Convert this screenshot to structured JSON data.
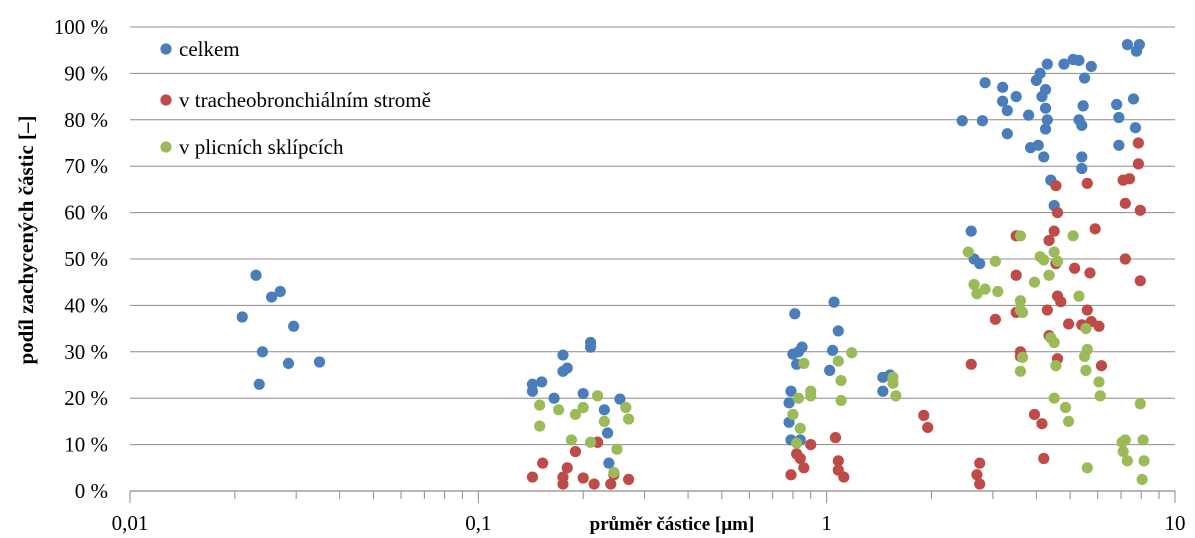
{
  "chart_data": {
    "type": "scatter",
    "xlabel": "průměr částice [µm]",
    "ylabel": "podíl zachycených částic [–]",
    "x_scale": "log",
    "xlim": [
      0.01,
      10
    ],
    "ylim": [
      0,
      100
    ],
    "x_ticks": [
      {
        "value": 0.01,
        "label": "0,01"
      },
      {
        "value": 0.1,
        "label": "0,1"
      },
      {
        "value": 1,
        "label": "1"
      },
      {
        "value": 10,
        "label": "10"
      }
    ],
    "y_ticks": [
      {
        "value": 0,
        "label": "0 %"
      },
      {
        "value": 10,
        "label": "10 %"
      },
      {
        "value": 20,
        "label": "20 %"
      },
      {
        "value": 30,
        "label": "30 %"
      },
      {
        "value": 40,
        "label": "40 %"
      },
      {
        "value": 50,
        "label": "50 %"
      },
      {
        "value": 60,
        "label": "60 %"
      },
      {
        "value": 70,
        "label": "70 %"
      },
      {
        "value": 80,
        "label": "80 %"
      },
      {
        "value": 90,
        "label": "90 %"
      },
      {
        "value": 100,
        "label": "100 %"
      }
    ],
    "grid": "horizontal",
    "legend_position": "top-left",
    "series": [
      {
        "name": "celkem",
        "color": "#4a7ebb",
        "points": [
          [
            0.021,
            37.5
          ],
          [
            0.023,
            46.5
          ],
          [
            0.0235,
            23
          ],
          [
            0.024,
            30
          ],
          [
            0.0255,
            41.8
          ],
          [
            0.027,
            43
          ],
          [
            0.0285,
            27.5
          ],
          [
            0.0295,
            35.5
          ],
          [
            0.035,
            27.8
          ],
          [
            0.143,
            23
          ],
          [
            0.143,
            21.5
          ],
          [
            0.152,
            23.5
          ],
          [
            0.165,
            20
          ],
          [
            0.175,
            29.3
          ],
          [
            0.175,
            25.8
          ],
          [
            0.18,
            26.5
          ],
          [
            0.2,
            21
          ],
          [
            0.21,
            32
          ],
          [
            0.21,
            31
          ],
          [
            0.22,
            10.5
          ],
          [
            0.23,
            17.5
          ],
          [
            0.235,
            12.5
          ],
          [
            0.237,
            6
          ],
          [
            0.255,
            19.8
          ],
          [
            0.78,
            14.8
          ],
          [
            0.78,
            19
          ],
          [
            0.79,
            21.5
          ],
          [
            0.8,
            29.5
          ],
          [
            0.81,
            38.2
          ],
          [
            0.82,
            27.3
          ],
          [
            0.83,
            30
          ],
          [
            0.85,
            31
          ],
          [
            0.84,
            11
          ],
          [
            0.79,
            11
          ],
          [
            1.02,
            26
          ],
          [
            1.04,
            30.3
          ],
          [
            1.05,
            40.7
          ],
          [
            1.08,
            34.5
          ],
          [
            1.45,
            24.5
          ],
          [
            1.45,
            21.5
          ],
          [
            1.52,
            25
          ],
          [
            2.45,
            79.8
          ],
          [
            2.6,
            56
          ],
          [
            2.65,
            50
          ],
          [
            2.75,
            49
          ],
          [
            2.8,
            79.8
          ],
          [
            2.85,
            88
          ],
          [
            3.2,
            87
          ],
          [
            3.2,
            84
          ],
          [
            3.3,
            82
          ],
          [
            3.3,
            77
          ],
          [
            3.5,
            85
          ],
          [
            3.8,
            81
          ],
          [
            3.85,
            74
          ],
          [
            4.0,
            88.5
          ],
          [
            4.05,
            74.5
          ],
          [
            4.1,
            90
          ],
          [
            4.15,
            85
          ],
          [
            4.25,
            86.5
          ],
          [
            4.25,
            78
          ],
          [
            4.3,
            80
          ],
          [
            4.25,
            82.5
          ],
          [
            4.3,
            92
          ],
          [
            4.2,
            72
          ],
          [
            4.4,
            67
          ],
          [
            4.5,
            61.5
          ],
          [
            4.8,
            92
          ],
          [
            5.1,
            93
          ],
          [
            5.3,
            92.8
          ],
          [
            5.5,
            89
          ],
          [
            5.3,
            80
          ],
          [
            5.4,
            78.8
          ],
          [
            5.45,
            83
          ],
          [
            5.4,
            72
          ],
          [
            5.4,
            69.5
          ],
          [
            5.75,
            91.5
          ],
          [
            6.8,
            83.3
          ],
          [
            6.9,
            80.5
          ],
          [
            6.9,
            74.5
          ],
          [
            7.3,
            96.2
          ],
          [
            7.6,
            84.5
          ],
          [
            7.7,
            78.3
          ],
          [
            7.75,
            94.8
          ],
          [
            7.9,
            96.2
          ]
        ]
      },
      {
        "name": "v tracheobronchiálním stromě",
        "color": "#be4b48",
        "points": [
          [
            0.143,
            3
          ],
          [
            0.153,
            6
          ],
          [
            0.175,
            1.5
          ],
          [
            0.175,
            3
          ],
          [
            0.18,
            5
          ],
          [
            0.19,
            8.5
          ],
          [
            0.2,
            2.8
          ],
          [
            0.215,
            1.5
          ],
          [
            0.22,
            10.5
          ],
          [
            0.24,
            1.5
          ],
          [
            0.245,
            3.5
          ],
          [
            0.27,
            2.5
          ],
          [
            0.79,
            3.5
          ],
          [
            0.82,
            8
          ],
          [
            0.84,
            7
          ],
          [
            0.86,
            5
          ],
          [
            0.9,
            10
          ],
          [
            1.06,
            11.5
          ],
          [
            1.08,
            4.5
          ],
          [
            1.08,
            6.5
          ],
          [
            1.12,
            3
          ],
          [
            1.9,
            16.3
          ],
          [
            1.95,
            13.7
          ],
          [
            2.6,
            27.3
          ],
          [
            2.7,
            3.5
          ],
          [
            2.75,
            6
          ],
          [
            2.75,
            1.5
          ],
          [
            3.05,
            37
          ],
          [
            3.5,
            46.5
          ],
          [
            3.5,
            55
          ],
          [
            3.5,
            38.5
          ],
          [
            3.6,
            29
          ],
          [
            3.6,
            30
          ],
          [
            3.95,
            16.5
          ],
          [
            4.15,
            14.5
          ],
          [
            4.2,
            7
          ],
          [
            4.3,
            39
          ],
          [
            4.35,
            54
          ],
          [
            4.35,
            33.5
          ],
          [
            4.5,
            56
          ],
          [
            4.55,
            65.8
          ],
          [
            4.55,
            49
          ],
          [
            4.6,
            60
          ],
          [
            4.6,
            42
          ],
          [
            4.6,
            28.5
          ],
          [
            4.7,
            40.8
          ],
          [
            4.95,
            36
          ],
          [
            5.15,
            48
          ],
          [
            5.4,
            35.8
          ],
          [
            5.6,
            66.3
          ],
          [
            5.6,
            39
          ],
          [
            5.7,
            47
          ],
          [
            5.75,
            36.5
          ],
          [
            5.9,
            56.5
          ],
          [
            6.05,
            35.5
          ],
          [
            6.15,
            27
          ],
          [
            7.1,
            67
          ],
          [
            7.2,
            62
          ],
          [
            7.2,
            50
          ],
          [
            7.4,
            67.3
          ],
          [
            7.85,
            75
          ],
          [
            7.85,
            70.5
          ],
          [
            7.95,
            60.5
          ],
          [
            7.95,
            45.3
          ]
        ]
      },
      {
        "name": "v plicních sklípcích",
        "color": "#9bbb59",
        "points": [
          [
            0.15,
            18.5
          ],
          [
            0.15,
            14
          ],
          [
            0.17,
            17.5
          ],
          [
            0.185,
            11
          ],
          [
            0.19,
            16.5
          ],
          [
            0.2,
            18
          ],
          [
            0.21,
            10.5
          ],
          [
            0.22,
            20.5
          ],
          [
            0.23,
            15
          ],
          [
            0.245,
            4
          ],
          [
            0.25,
            9
          ],
          [
            0.265,
            18
          ],
          [
            0.27,
            15.5
          ],
          [
            0.8,
            16.5
          ],
          [
            0.82,
            10.3
          ],
          [
            0.83,
            20
          ],
          [
            0.84,
            13.5
          ],
          [
            0.86,
            27.5
          ],
          [
            0.9,
            20.5
          ],
          [
            0.9,
            21.5
          ],
          [
            1.08,
            28
          ],
          [
            1.1,
            23.8
          ],
          [
            1.1,
            19.5
          ],
          [
            1.18,
            29.8
          ],
          [
            1.55,
            24.5
          ],
          [
            1.55,
            23.2
          ],
          [
            1.58,
            20.5
          ],
          [
            2.55,
            51.5
          ],
          [
            2.65,
            44.5
          ],
          [
            2.7,
            42.5
          ],
          [
            2.85,
            43.5
          ],
          [
            3.05,
            49.5
          ],
          [
            3.1,
            43
          ],
          [
            3.6,
            55
          ],
          [
            3.6,
            41
          ],
          [
            3.6,
            39
          ],
          [
            3.6,
            25.8
          ],
          [
            3.65,
            38.5
          ],
          [
            3.65,
            28.8
          ],
          [
            3.95,
            45
          ],
          [
            4.1,
            50.5
          ],
          [
            4.2,
            49.8
          ],
          [
            4.35,
            46.5
          ],
          [
            4.4,
            33
          ],
          [
            4.5,
            51.5
          ],
          [
            4.5,
            32
          ],
          [
            4.5,
            20
          ],
          [
            4.55,
            27
          ],
          [
            4.6,
            49.5
          ],
          [
            4.85,
            18
          ],
          [
            4.95,
            15
          ],
          [
            5.1,
            55
          ],
          [
            5.3,
            42
          ],
          [
            5.5,
            29
          ],
          [
            5.55,
            35
          ],
          [
            5.55,
            26
          ],
          [
            5.6,
            5
          ],
          [
            5.6,
            30.5
          ],
          [
            6.05,
            23.5
          ],
          [
            6.1,
            20.5
          ],
          [
            7.05,
            10.5
          ],
          [
            7.1,
            8.5
          ],
          [
            7.2,
            11
          ],
          [
            7.3,
            6.5
          ],
          [
            7.95,
            18.8
          ],
          [
            8.05,
            2.5
          ],
          [
            8.1,
            11
          ],
          [
            8.15,
            6.5
          ]
        ]
      }
    ]
  }
}
